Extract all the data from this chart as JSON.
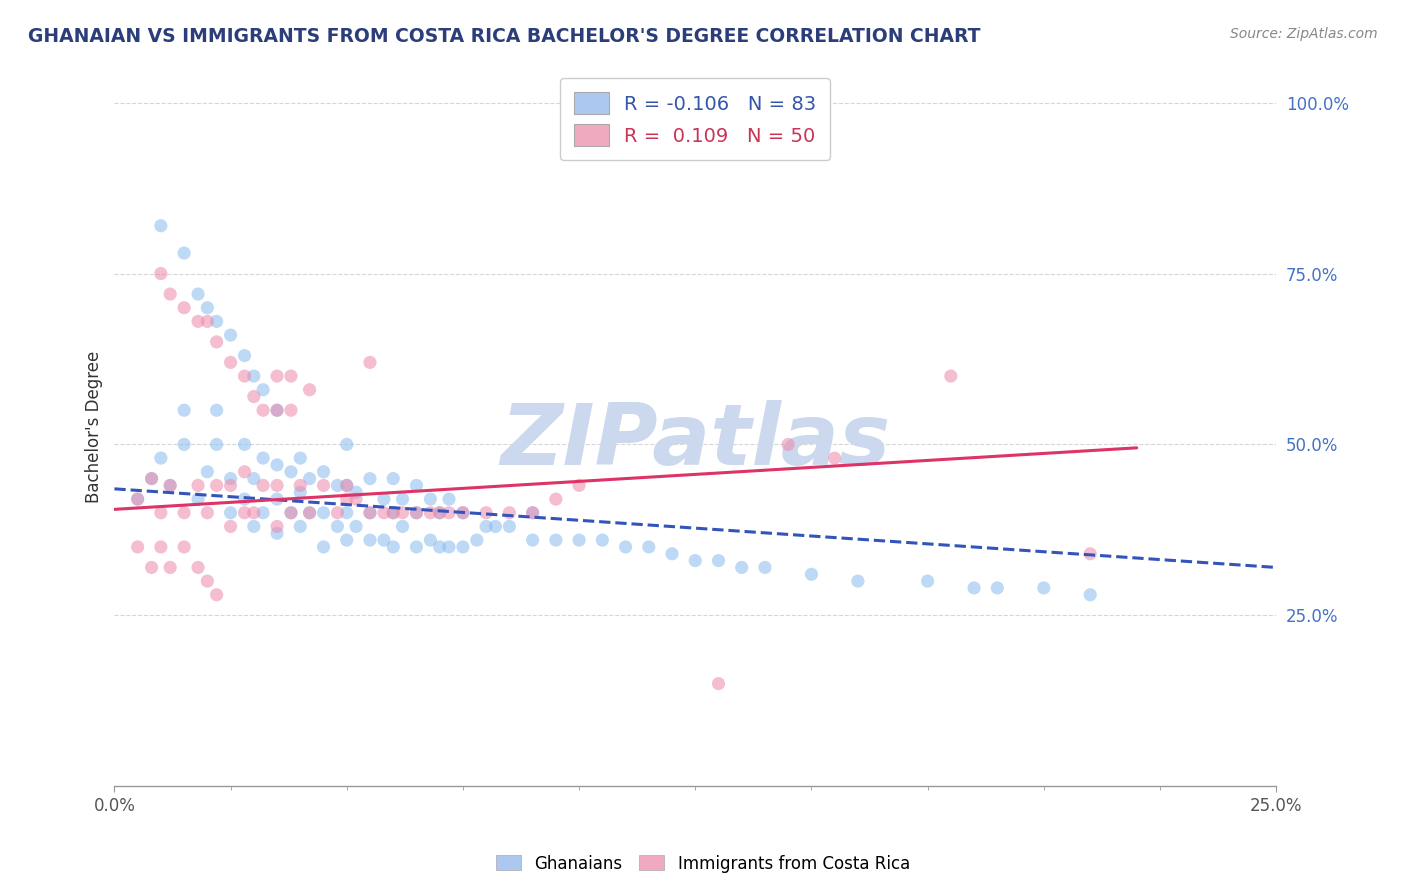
{
  "title": "GHANAIAN VS IMMIGRANTS FROM COSTA RICA BACHELOR'S DEGREE CORRELATION CHART",
  "source_text": "Source: ZipAtlas.com",
  "ylabel": "Bachelor's Degree",
  "xlim": [
    0.0,
    0.25
  ],
  "ylim": [
    0.0,
    1.05
  ],
  "x_tick_positions": [
    0.0,
    0.25
  ],
  "x_tick_labels": [
    "0.0%",
    "25.0%"
  ],
  "y_tick_positions": [
    0.25,
    0.5,
    0.75,
    1.0
  ],
  "y_tick_labels": [
    "25.0%",
    "50.0%",
    "75.0%",
    "100.0%"
  ],
  "watermark_text": "ZIPatlas",
  "watermark_color": "#ccd8ee",
  "legend_entries": [
    {
      "label": "R = -0.106   N = 83",
      "color": "#adc8f0",
      "text_color": "#3355aa"
    },
    {
      "label": "R =  0.109   N = 50",
      "color": "#f0aac0",
      "text_color": "#cc3355"
    }
  ],
  "bottom_legend": [
    {
      "label": "Ghanaians",
      "color": "#adc8f0"
    },
    {
      "label": "Immigrants from Costa Rica",
      "color": "#f0aac0"
    }
  ],
  "ghanaian_scatter": {
    "color": "#88bbee",
    "alpha": 0.55,
    "size": 90,
    "x": [
      0.005,
      0.008,
      0.01,
      0.012,
      0.015,
      0.015,
      0.018,
      0.02,
      0.022,
      0.022,
      0.025,
      0.025,
      0.028,
      0.028,
      0.03,
      0.03,
      0.032,
      0.032,
      0.035,
      0.035,
      0.035,
      0.038,
      0.038,
      0.04,
      0.04,
      0.04,
      0.042,
      0.042,
      0.045,
      0.045,
      0.045,
      0.048,
      0.048,
      0.05,
      0.05,
      0.05,
      0.05,
      0.052,
      0.052,
      0.055,
      0.055,
      0.055,
      0.058,
      0.058,
      0.06,
      0.06,
      0.06,
      0.062,
      0.062,
      0.065,
      0.065,
      0.065,
      0.068,
      0.068,
      0.07,
      0.07,
      0.072,
      0.072,
      0.075,
      0.075,
      0.078,
      0.08,
      0.082,
      0.085,
      0.09,
      0.09,
      0.095,
      0.1,
      0.105,
      0.11,
      0.115,
      0.12,
      0.125,
      0.13,
      0.135,
      0.14,
      0.15,
      0.16,
      0.175,
      0.185,
      0.19,
      0.2,
      0.21
    ],
    "y": [
      0.42,
      0.45,
      0.48,
      0.44,
      0.5,
      0.55,
      0.42,
      0.46,
      0.5,
      0.55,
      0.4,
      0.45,
      0.42,
      0.5,
      0.38,
      0.45,
      0.4,
      0.48,
      0.37,
      0.42,
      0.47,
      0.4,
      0.46,
      0.38,
      0.43,
      0.48,
      0.4,
      0.45,
      0.35,
      0.4,
      0.46,
      0.38,
      0.44,
      0.36,
      0.4,
      0.44,
      0.5,
      0.38,
      0.43,
      0.36,
      0.4,
      0.45,
      0.36,
      0.42,
      0.35,
      0.4,
      0.45,
      0.38,
      0.42,
      0.35,
      0.4,
      0.44,
      0.36,
      0.42,
      0.35,
      0.4,
      0.35,
      0.42,
      0.35,
      0.4,
      0.36,
      0.38,
      0.38,
      0.38,
      0.36,
      0.4,
      0.36,
      0.36,
      0.36,
      0.35,
      0.35,
      0.34,
      0.33,
      0.33,
      0.32,
      0.32,
      0.31,
      0.3,
      0.3,
      0.29,
      0.29,
      0.29,
      0.28
    ]
  },
  "ghanaian_high": {
    "color": "#88bbee",
    "alpha": 0.55,
    "size": 90,
    "x": [
      0.01,
      0.015,
      0.018,
      0.02,
      0.022,
      0.025,
      0.028,
      0.03,
      0.032,
      0.035
    ],
    "y": [
      0.82,
      0.78,
      0.72,
      0.7,
      0.68,
      0.66,
      0.63,
      0.6,
      0.58,
      0.55
    ]
  },
  "costarica_scatter": {
    "color": "#ee88aa",
    "alpha": 0.55,
    "size": 90,
    "x": [
      0.005,
      0.008,
      0.01,
      0.012,
      0.015,
      0.018,
      0.02,
      0.022,
      0.025,
      0.025,
      0.028,
      0.028,
      0.03,
      0.032,
      0.035,
      0.035,
      0.038,
      0.04,
      0.042,
      0.045,
      0.048,
      0.05,
      0.05,
      0.052,
      0.055,
      0.058,
      0.06,
      0.062,
      0.065,
      0.068,
      0.07,
      0.072,
      0.075,
      0.08,
      0.085,
      0.09,
      0.095,
      0.1,
      0.145,
      0.155,
      0.18,
      0.21,
      0.005,
      0.008,
      0.01,
      0.012,
      0.015,
      0.018,
      0.02,
      0.022
    ],
    "y": [
      0.42,
      0.45,
      0.4,
      0.44,
      0.4,
      0.44,
      0.4,
      0.44,
      0.38,
      0.44,
      0.4,
      0.46,
      0.4,
      0.44,
      0.38,
      0.44,
      0.4,
      0.44,
      0.4,
      0.44,
      0.4,
      0.42,
      0.44,
      0.42,
      0.4,
      0.4,
      0.4,
      0.4,
      0.4,
      0.4,
      0.4,
      0.4,
      0.4,
      0.4,
      0.4,
      0.4,
      0.42,
      0.44,
      0.5,
      0.48,
      0.6,
      0.34,
      0.35,
      0.32,
      0.35,
      0.32,
      0.35,
      0.32,
      0.3,
      0.28
    ]
  },
  "costarica_high": {
    "color": "#ee88aa",
    "alpha": 0.55,
    "size": 90,
    "x": [
      0.01,
      0.012,
      0.015,
      0.018,
      0.02,
      0.022,
      0.025,
      0.028,
      0.03,
      0.032,
      0.035,
      0.035,
      0.038,
      0.038,
      0.042,
      0.055,
      0.13
    ],
    "y": [
      0.75,
      0.72,
      0.7,
      0.68,
      0.68,
      0.65,
      0.62,
      0.6,
      0.57,
      0.55,
      0.55,
      0.6,
      0.55,
      0.6,
      0.58,
      0.62,
      0.15
    ]
  },
  "ghanaian_trend": {
    "x": [
      0.0,
      0.25
    ],
    "y": [
      0.435,
      0.32
    ],
    "color": "#3355bb",
    "linestyle": "--",
    "linewidth": 2.2
  },
  "costarica_trend": {
    "x": [
      0.0,
      0.22
    ],
    "y": [
      0.405,
      0.495
    ],
    "color": "#dd3366",
    "linestyle": "-",
    "linewidth": 2.2
  },
  "background_color": "#ffffff",
  "grid_color": "#cccccc",
  "title_color": "#2c3e7a",
  "axis_color": "#999999",
  "tick_color_y": "#4472c4",
  "tick_color_x": "#555555"
}
